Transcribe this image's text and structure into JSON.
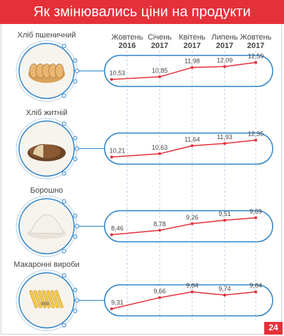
{
  "title": "Як змінювались ціни на продукти",
  "logo_text": "24",
  "colors": {
    "header_bg": "#e5303a",
    "line": "#e5303a",
    "capsule": "#2c82c9",
    "text": "#444444"
  },
  "chart_data": {
    "type": "line",
    "x": [
      [
        "Жовтень",
        "2016"
      ],
      [
        "Січень",
        "2017"
      ],
      [
        "Квітень",
        "2017"
      ],
      [
        "Липень",
        "2017"
      ],
      [
        "Жовтень",
        "2017"
      ]
    ],
    "ylim": [
      8,
      13
    ],
    "series": [
      {
        "name": "Хліб пшеничний",
        "icon": "white-bread-icon",
        "values": [
          10.53,
          10.85,
          11.98,
          12.09,
          12.59
        ],
        "labels": [
          "10,53",
          "10,85",
          "11,98",
          "12,09",
          "12,59"
        ]
      },
      {
        "name": "Хліб житній",
        "icon": "rye-bread-icon",
        "values": [
          10.21,
          10.63,
          11.64,
          11.93,
          12.35
        ],
        "labels": [
          "10,21",
          "10,63",
          "11,64",
          "11,93",
          "12,35"
        ]
      },
      {
        "name": "Борошно",
        "icon": "flour-icon",
        "values": [
          8.46,
          8.78,
          9.26,
          9.51,
          9.69
        ],
        "labels": [
          "8,46",
          "8,78",
          "9,26",
          "9,51",
          "9,69"
        ]
      },
      {
        "name": "Макаронні вироби",
        "icon": "pasta-icon",
        "values": [
          9.31,
          9.66,
          9.84,
          9.74,
          9.84
        ],
        "labels": [
          "9,31",
          "9,66",
          "9,84",
          "9,74",
          "9,84"
        ]
      }
    ]
  }
}
